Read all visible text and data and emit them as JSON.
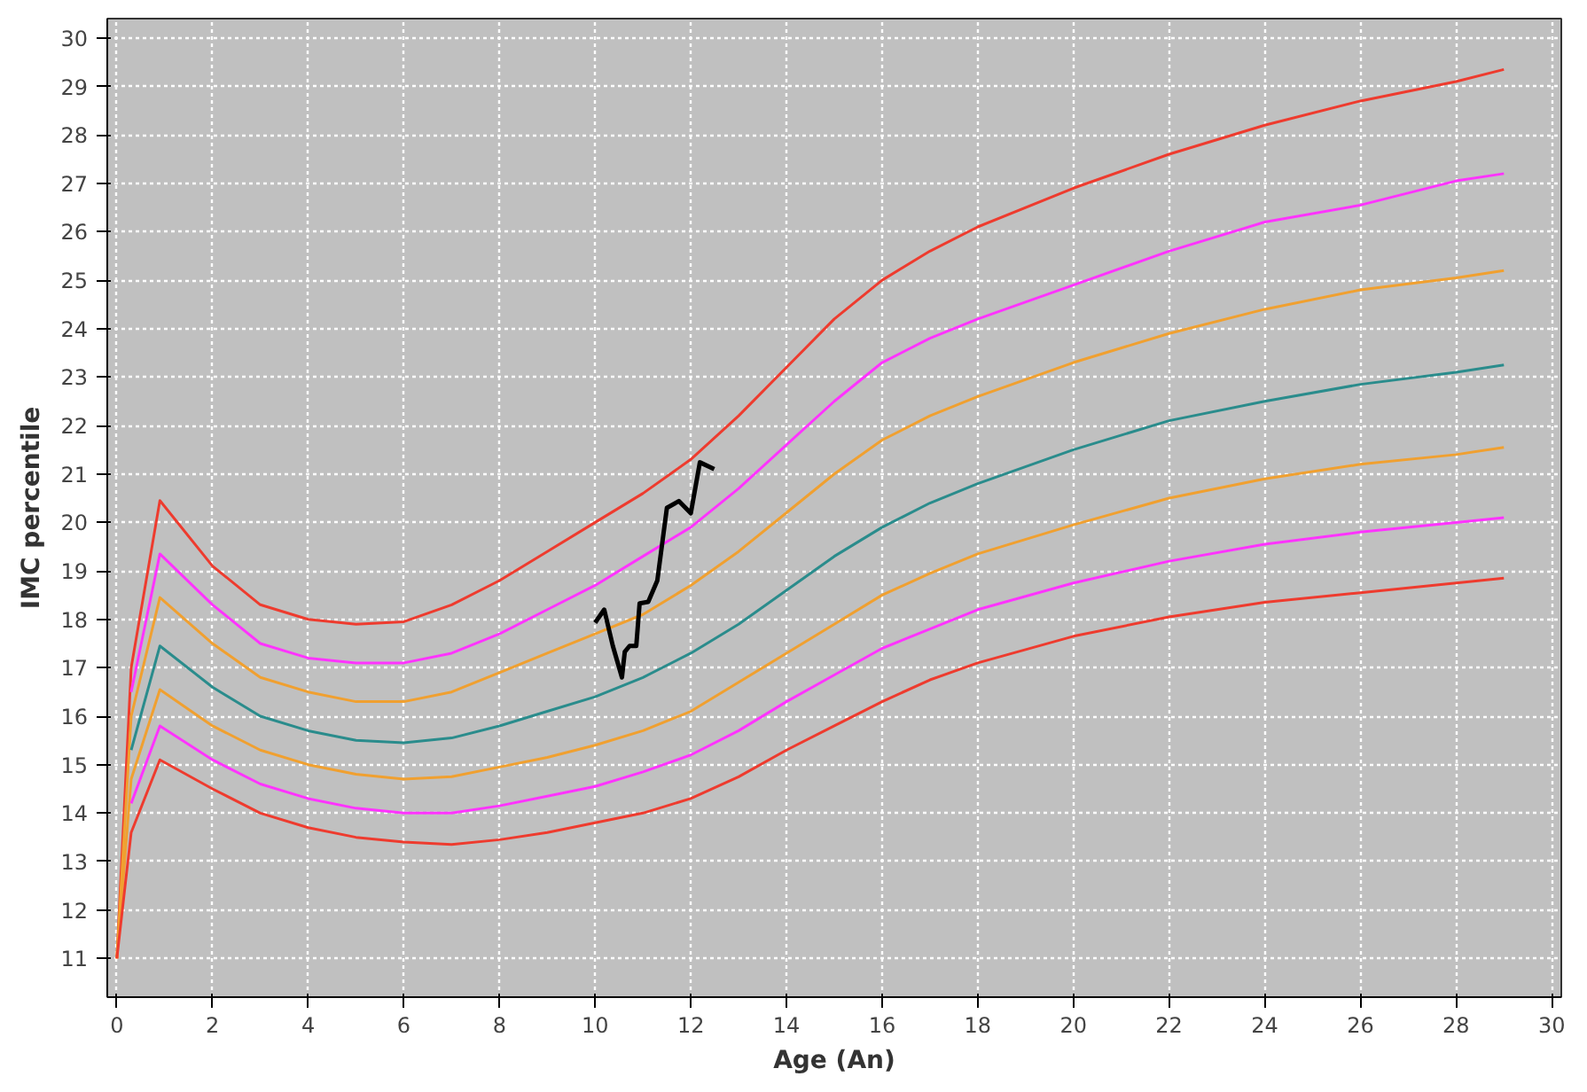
{
  "chart_data": {
    "type": "line",
    "xlabel": "Age (An)",
    "ylabel": "IMC percentile",
    "xlim": [
      -0.2,
      30.2
    ],
    "ylim": [
      10.2,
      30.4
    ],
    "xticks": [
      0,
      2,
      4,
      6,
      8,
      10,
      12,
      14,
      16,
      18,
      20,
      22,
      24,
      26,
      28,
      30
    ],
    "yticks": [
      11,
      12,
      13,
      14,
      15,
      16,
      17,
      18,
      19,
      20,
      21,
      22,
      23,
      24,
      25,
      26,
      27,
      28,
      29,
      30
    ],
    "grid": true,
    "marker": "none",
    "line_style": "solid",
    "x": [
      0,
      0.3,
      0.9,
      2,
      3,
      4,
      5,
      6,
      7,
      8,
      9,
      10,
      11,
      12,
      13,
      14,
      15,
      16,
      17,
      18,
      20,
      22,
      24,
      26,
      28,
      29
    ],
    "series": [
      {
        "color": "#ee3b2e",
        "values": [
          11,
          17,
          20.45,
          19.1,
          18.3,
          18.0,
          17.9,
          17.95,
          18.3,
          18.8,
          19.4,
          20.0,
          20.6,
          21.3,
          22.2,
          23.2,
          24.2,
          25.0,
          25.6,
          26.1,
          26.9,
          27.6,
          28.2,
          28.7,
          29.1,
          29.35
        ]
      },
      {
        "color": "#ff33ff",
        "values": [
          null,
          16.5,
          19.35,
          18.3,
          17.5,
          17.2,
          17.1,
          17.1,
          17.3,
          17.7,
          18.2,
          18.7,
          19.3,
          19.9,
          20.7,
          21.6,
          22.5,
          23.3,
          23.8,
          24.2,
          24.9,
          25.6,
          26.2,
          26.55,
          27.05,
          27.2
        ]
      },
      {
        "color": "#f0a030",
        "values": [
          11,
          16,
          18.45,
          17.5,
          16.8,
          16.5,
          16.3,
          16.3,
          16.5,
          16.9,
          17.3,
          17.7,
          18.1,
          18.7,
          19.4,
          20.2,
          21.0,
          21.7,
          22.2,
          22.6,
          23.3,
          23.9,
          24.4,
          24.8,
          25.05,
          25.2
        ]
      },
      {
        "color": "#2a8c8c",
        "values": [
          null,
          15.3,
          17.45,
          16.6,
          16.0,
          15.7,
          15.5,
          15.45,
          15.55,
          15.8,
          16.1,
          16.4,
          16.8,
          17.3,
          17.9,
          18.6,
          19.3,
          19.9,
          20.4,
          20.8,
          21.5,
          22.1,
          22.5,
          22.85,
          23.1,
          23.25
        ]
      },
      {
        "color": "#f0a030",
        "values": [
          11,
          14.7,
          16.55,
          15.8,
          15.3,
          15.0,
          14.8,
          14.7,
          14.75,
          14.95,
          15.15,
          15.4,
          15.7,
          16.1,
          16.7,
          17.3,
          17.9,
          18.5,
          18.95,
          19.35,
          19.95,
          20.5,
          20.9,
          21.2,
          21.4,
          21.55
        ]
      },
      {
        "color": "#ff33ff",
        "values": [
          null,
          14.2,
          15.8,
          15.1,
          14.6,
          14.3,
          14.1,
          14.0,
          14.0,
          14.15,
          14.35,
          14.55,
          14.85,
          15.2,
          15.7,
          16.3,
          16.85,
          17.4,
          17.8,
          18.2,
          18.75,
          19.2,
          19.55,
          19.8,
          20.0,
          20.1
        ]
      },
      {
        "color": "#ee3b2e",
        "values": [
          11,
          13.6,
          15.1,
          14.5,
          14.0,
          13.7,
          13.5,
          13.4,
          13.35,
          13.45,
          13.6,
          13.8,
          14.0,
          14.3,
          14.75,
          15.3,
          15.8,
          16.3,
          16.75,
          17.1,
          17.65,
          18.05,
          18.35,
          18.55,
          18.75,
          18.85
        ]
      },
      {
        "color": "#000000",
        "x": [
          10.0,
          10.19,
          10.37,
          10.56,
          10.62,
          10.72,
          10.86,
          10.93,
          11.11,
          11.3,
          11.5,
          11.75,
          12.0,
          12.19,
          12.49
        ],
        "values": [
          17.93,
          18.2,
          17.45,
          16.8,
          17.33,
          17.45,
          17.45,
          18.33,
          18.36,
          18.8,
          20.3,
          20.44,
          20.19,
          21.24,
          21.1
        ]
      }
    ]
  }
}
